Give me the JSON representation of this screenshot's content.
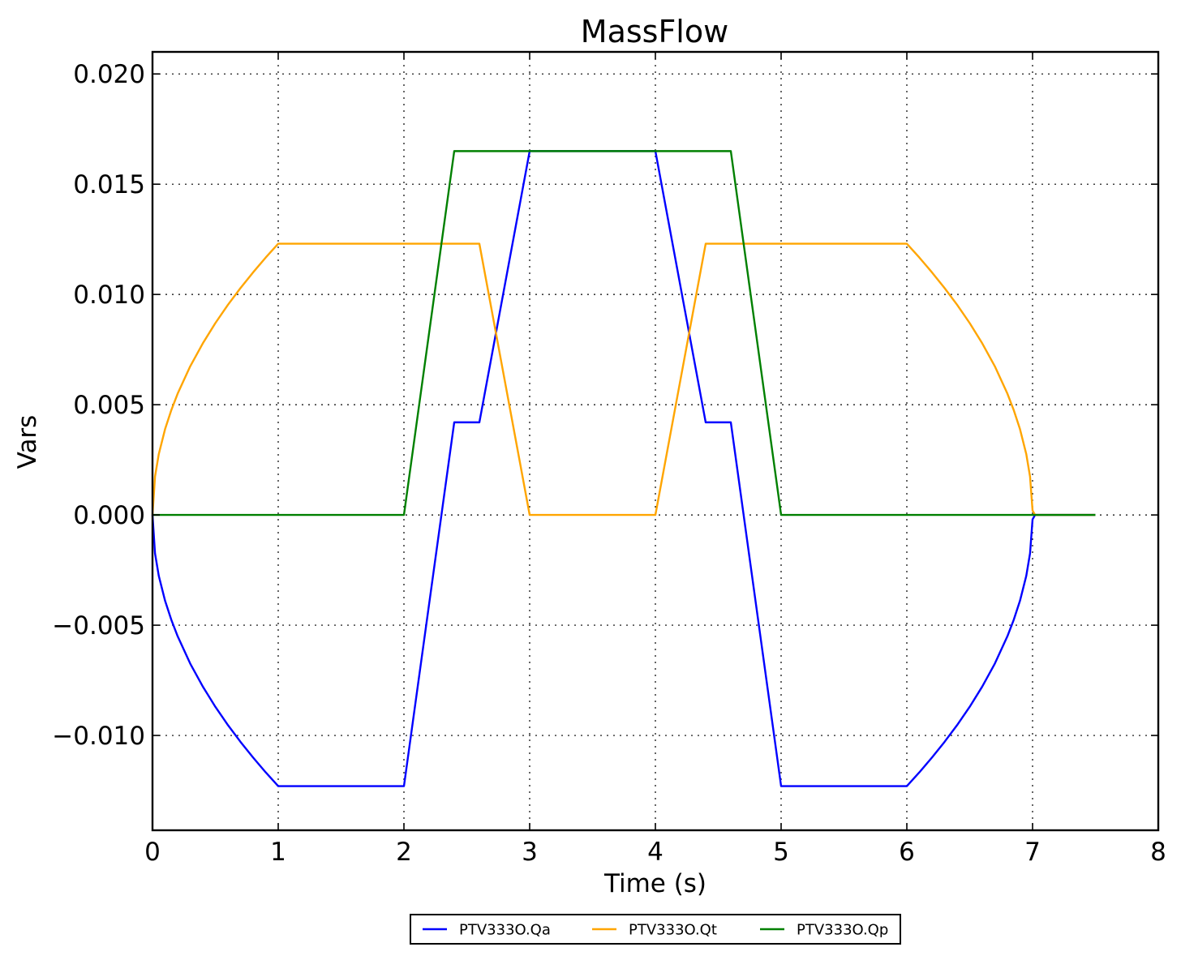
{
  "chart_data": {
    "type": "line",
    "title": "MassFlow",
    "xlabel": "Time (s)",
    "ylabel": "Vars",
    "xlim": [
      0,
      8
    ],
    "ylim": [
      -0.0143,
      0.021
    ],
    "x_ticks": [
      0,
      1,
      2,
      3,
      4,
      5,
      6,
      7,
      8
    ],
    "x_tick_labels": [
      "0",
      "1",
      "2",
      "3",
      "4",
      "5",
      "6",
      "7",
      "8"
    ],
    "y_ticks": [
      -0.01,
      -0.005,
      0.0,
      0.005,
      0.01,
      0.015,
      0.02
    ],
    "y_tick_labels": [
      "−0.010",
      "−0.005",
      "0.000",
      "0.005",
      "0.010",
      "0.015",
      "0.020"
    ],
    "grid": true,
    "legend_position": "bottom-center",
    "series": [
      {
        "name": "PTV333O.Qa",
        "color": "#0000ff",
        "x": [
          0,
          0.02,
          0.05,
          0.1,
          0.15,
          0.2,
          0.3,
          0.4,
          0.5,
          0.6,
          0.7,
          0.8,
          0.9,
          1.0,
          2.0,
          2.4,
          2.6,
          3.0,
          4.0,
          4.4,
          4.6,
          5.0,
          6.0,
          6.1,
          6.2,
          6.3,
          6.4,
          6.5,
          6.6,
          6.7,
          6.8,
          6.85,
          6.9,
          6.95,
          6.98,
          7.0,
          7.02,
          7.5
        ],
        "y": [
          0,
          -0.00174,
          -0.00276,
          -0.00389,
          -0.00476,
          -0.0055,
          -0.00674,
          -0.00778,
          -0.0087,
          -0.00953,
          -0.01029,
          -0.011,
          -0.01167,
          -0.0123,
          -0.0123,
          0.0042,
          0.0042,
          0.0165,
          0.0165,
          0.0042,
          0.0042,
          -0.0123,
          -0.0123,
          -0.01167,
          -0.011,
          -0.01029,
          -0.00953,
          -0.0087,
          -0.00778,
          -0.00674,
          -0.0055,
          -0.00476,
          -0.00389,
          -0.00276,
          -0.00174,
          -0.0002,
          0,
          0
        ]
      },
      {
        "name": "PTV333O.Qt",
        "color": "#ffa500",
        "x": [
          0,
          0.02,
          0.05,
          0.1,
          0.15,
          0.2,
          0.3,
          0.4,
          0.5,
          0.6,
          0.7,
          0.8,
          0.9,
          1.0,
          2.6,
          3.0,
          4.0,
          4.4,
          6.0,
          6.1,
          6.2,
          6.3,
          6.4,
          6.5,
          6.6,
          6.7,
          6.8,
          6.85,
          6.9,
          6.95,
          6.98,
          7.0,
          7.02,
          7.5
        ],
        "y": [
          0,
          0.00174,
          0.00276,
          0.00389,
          0.00476,
          0.0055,
          0.00674,
          0.00778,
          0.0087,
          0.00953,
          0.01029,
          0.011,
          0.01167,
          0.0123,
          0.0123,
          0,
          0,
          0.0123,
          0.0123,
          0.01167,
          0.011,
          0.01029,
          0.00953,
          0.0087,
          0.00778,
          0.00674,
          0.0055,
          0.00476,
          0.00389,
          0.00276,
          0.00174,
          0.0002,
          0,
          0
        ]
      },
      {
        "name": "PTV333O.Qp",
        "color": "#008000",
        "x": [
          0,
          2.0,
          2.4,
          4.6,
          5.0,
          7.5
        ],
        "y": [
          0,
          0,
          0.0165,
          0.0165,
          0,
          0
        ]
      }
    ]
  }
}
